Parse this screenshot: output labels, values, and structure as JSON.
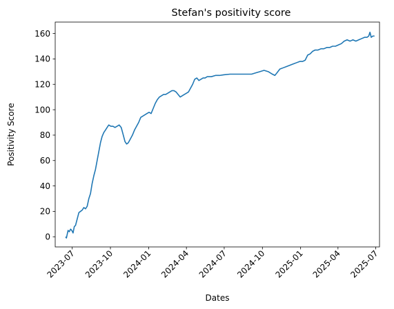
{
  "chart_data": {
    "type": "line",
    "title": "Stefan's positivity score",
    "xlabel": "Dates",
    "ylabel": "Positivity Score",
    "xlim": [
      "2023-05-21",
      "2025-07-10"
    ],
    "ylim": [
      -8,
      169
    ],
    "x_ticks": [
      "2023-07",
      "2023-10",
      "2024-01",
      "2024-04",
      "2024-07",
      "2024-10",
      "2025-01",
      "2025-04",
      "2025-07"
    ],
    "y_ticks": [
      0,
      20,
      40,
      60,
      80,
      100,
      120,
      140,
      160
    ],
    "grid": false,
    "series": [
      {
        "color": "#1f77b4",
        "points": [
          [
            "2023-06-15",
            0
          ],
          [
            "2023-06-17",
            -1
          ],
          [
            "2023-06-19",
            2
          ],
          [
            "2023-06-21",
            5
          ],
          [
            "2023-06-24",
            4
          ],
          [
            "2023-06-27",
            6
          ],
          [
            "2023-06-30",
            5
          ],
          [
            "2023-07-03",
            3
          ],
          [
            "2023-07-06",
            8
          ],
          [
            "2023-07-09",
            9
          ],
          [
            "2023-07-13",
            14
          ],
          [
            "2023-07-17",
            19
          ],
          [
            "2023-07-21",
            20
          ],
          [
            "2023-07-25",
            21
          ],
          [
            "2023-07-29",
            23
          ],
          [
            "2023-08-02",
            22
          ],
          [
            "2023-08-06",
            24
          ],
          [
            "2023-08-10",
            30
          ],
          [
            "2023-08-14",
            34
          ],
          [
            "2023-08-18",
            42
          ],
          [
            "2023-08-22",
            48
          ],
          [
            "2023-08-26",
            53
          ],
          [
            "2023-08-30",
            60
          ],
          [
            "2023-09-03",
            67
          ],
          [
            "2023-09-07",
            74
          ],
          [
            "2023-09-11",
            79
          ],
          [
            "2023-09-15",
            82
          ],
          [
            "2023-09-19",
            84
          ],
          [
            "2023-09-23",
            86
          ],
          [
            "2023-09-27",
            88
          ],
          [
            "2023-10-02",
            87
          ],
          [
            "2023-10-07",
            87
          ],
          [
            "2023-10-12",
            86
          ],
          [
            "2023-10-17",
            87
          ],
          [
            "2023-10-22",
            88
          ],
          [
            "2023-10-27",
            86
          ],
          [
            "2023-11-01",
            80
          ],
          [
            "2023-11-05",
            75
          ],
          [
            "2023-11-09",
            73
          ],
          [
            "2023-11-13",
            74
          ],
          [
            "2023-11-18",
            77
          ],
          [
            "2023-11-23",
            80
          ],
          [
            "2023-11-28",
            84
          ],
          [
            "2023-12-03",
            87
          ],
          [
            "2023-12-08",
            90
          ],
          [
            "2023-12-13",
            94
          ],
          [
            "2023-12-18",
            95
          ],
          [
            "2023-12-23",
            96
          ],
          [
            "2023-12-28",
            97
          ],
          [
            "2024-01-02",
            98
          ],
          [
            "2024-01-07",
            97
          ],
          [
            "2024-01-12",
            101
          ],
          [
            "2024-01-17",
            105
          ],
          [
            "2024-01-22",
            108
          ],
          [
            "2024-01-27",
            110
          ],
          [
            "2024-02-01",
            111
          ],
          [
            "2024-02-06",
            112
          ],
          [
            "2024-02-11",
            112
          ],
          [
            "2024-02-16",
            113
          ],
          [
            "2024-02-21",
            114
          ],
          [
            "2024-02-26",
            115
          ],
          [
            "2024-03-02",
            115
          ],
          [
            "2024-03-07",
            114
          ],
          [
            "2024-03-12",
            112
          ],
          [
            "2024-03-17",
            110
          ],
          [
            "2024-03-22",
            111
          ],
          [
            "2024-03-27",
            112
          ],
          [
            "2024-04-01",
            113
          ],
          [
            "2024-04-06",
            114
          ],
          [
            "2024-04-11",
            117
          ],
          [
            "2024-04-16",
            120
          ],
          [
            "2024-04-21",
            124
          ],
          [
            "2024-04-26",
            125
          ],
          [
            "2024-05-01",
            123
          ],
          [
            "2024-05-06",
            124
          ],
          [
            "2024-05-11",
            125
          ],
          [
            "2024-05-16",
            125
          ],
          [
            "2024-05-21",
            126
          ],
          [
            "2024-05-31",
            126
          ],
          [
            "2024-06-10",
            127
          ],
          [
            "2024-06-20",
            127
          ],
          [
            "2024-06-30",
            127.5
          ],
          [
            "2024-07-15",
            128
          ],
          [
            "2024-08-01",
            128
          ],
          [
            "2024-08-20",
            128
          ],
          [
            "2024-09-05",
            128
          ],
          [
            "2024-09-15",
            129
          ],
          [
            "2024-09-25",
            130
          ],
          [
            "2024-10-05",
            131
          ],
          [
            "2024-10-15",
            130
          ],
          [
            "2024-10-25",
            128
          ],
          [
            "2024-10-31",
            127
          ],
          [
            "2024-11-05",
            129
          ],
          [
            "2024-11-12",
            132
          ],
          [
            "2024-11-20",
            133
          ],
          [
            "2024-11-28",
            134
          ],
          [
            "2024-12-06",
            135
          ],
          [
            "2024-12-14",
            136
          ],
          [
            "2024-12-22",
            137
          ],
          [
            "2024-12-30",
            138
          ],
          [
            "2025-01-06",
            138
          ],
          [
            "2025-01-12",
            139
          ],
          [
            "2025-01-18",
            143
          ],
          [
            "2025-01-24",
            144
          ],
          [
            "2025-01-30",
            146
          ],
          [
            "2025-02-05",
            147
          ],
          [
            "2025-02-12",
            147
          ],
          [
            "2025-02-19",
            148
          ],
          [
            "2025-02-26",
            148
          ],
          [
            "2025-03-05",
            149
          ],
          [
            "2025-03-12",
            149
          ],
          [
            "2025-03-19",
            150
          ],
          [
            "2025-03-26",
            150
          ],
          [
            "2025-04-02",
            151
          ],
          [
            "2025-04-09",
            152
          ],
          [
            "2025-04-16",
            154
          ],
          [
            "2025-04-23",
            155
          ],
          [
            "2025-04-30",
            154
          ],
          [
            "2025-05-07",
            155
          ],
          [
            "2025-05-14",
            154
          ],
          [
            "2025-05-21",
            155
          ],
          [
            "2025-05-28",
            156
          ],
          [
            "2025-06-04",
            157
          ],
          [
            "2025-06-10",
            157
          ],
          [
            "2025-06-14",
            158
          ],
          [
            "2025-06-17",
            161
          ],
          [
            "2025-06-20",
            157
          ],
          [
            "2025-06-24",
            158
          ],
          [
            "2025-06-28",
            158
          ]
        ]
      }
    ]
  }
}
